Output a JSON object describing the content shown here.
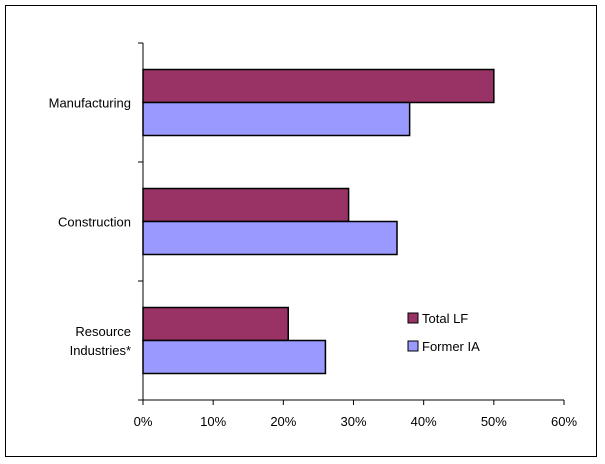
{
  "chart_data": {
    "type": "bar",
    "orientation": "horizontal",
    "categories": [
      [
        "Manufacturing"
      ],
      [
        "Construction"
      ],
      [
        "Resource",
        "Industries*"
      ]
    ],
    "series": [
      {
        "name": "Total LF",
        "values": [
          50,
          29.3,
          20.7
        ],
        "color": "#993366"
      },
      {
        "name": "Former IA",
        "values": [
          38,
          36.2,
          26
        ],
        "color": "#9999ff"
      }
    ],
    "xlim": [
      0,
      60
    ],
    "xticks": [
      0,
      10,
      20,
      30,
      40,
      50,
      60
    ],
    "tick_format": "percent",
    "grid": false,
    "legend_position": "right",
    "title": "",
    "xlabel": "",
    "ylabel": ""
  }
}
